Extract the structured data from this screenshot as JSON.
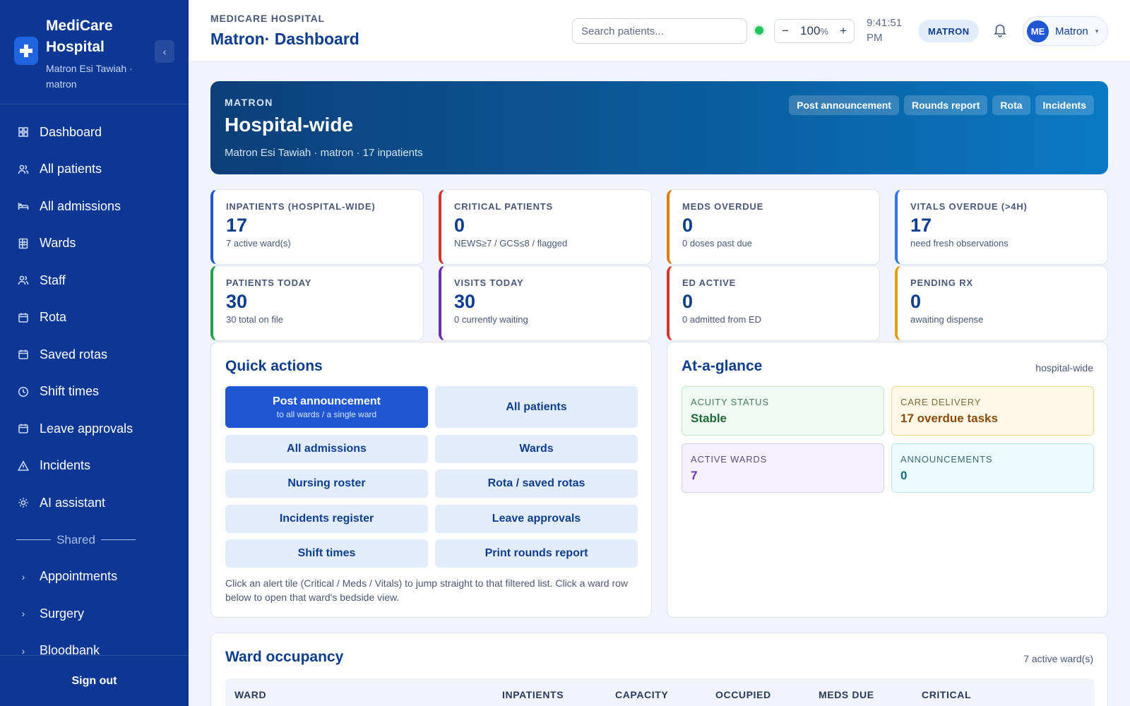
{
  "sidebar": {
    "brand_name": "MediCare Hospital",
    "brand_sub": "Matron Esi Tawiah · matron",
    "collapse_glyph": "‹",
    "items": [
      {
        "label": "Dashboard",
        "icon": "grid-icon"
      },
      {
        "label": "All patients",
        "icon": "users-icon"
      },
      {
        "label": "All admissions",
        "icon": "bed-icon"
      },
      {
        "label": "Wards",
        "icon": "building-icon"
      },
      {
        "label": "Staff",
        "icon": "users-icon"
      },
      {
        "label": "Rota",
        "icon": "calendar-icon"
      },
      {
        "label": "Saved rotas",
        "icon": "calendar-icon"
      },
      {
        "label": "Shift times",
        "icon": "clock-icon"
      },
      {
        "label": "Leave approvals",
        "icon": "calendar-icon"
      },
      {
        "label": "Incidents",
        "icon": "warning-icon"
      },
      {
        "label": "AI assistant",
        "icon": "sparkle-icon"
      }
    ],
    "shared_label": "Shared",
    "shared_items": [
      {
        "label": "Appointments"
      },
      {
        "label": "Surgery"
      },
      {
        "label": "Bloodbank"
      }
    ],
    "sign_out": "Sign out"
  },
  "topbar": {
    "crumb": "MEDICARE HOSPITAL",
    "title": "Matron· Dashboard",
    "search_placeholder": "Search patients...",
    "zoom_minus": "−",
    "zoom_value": "100",
    "zoom_unit": "%",
    "zoom_plus": "+",
    "clock": "9:41:51 PM",
    "role": "MATRON",
    "user_initials": "ME",
    "user_name": "Matron",
    "user_caret": "▾"
  },
  "hero": {
    "kicker": "MATRON",
    "title": "Hospital-wide",
    "sub": "Matron Esi Tawiah · matron · 17 inpatients",
    "actions": [
      "Post announcement",
      "Rounds report",
      "Rota",
      "Incidents"
    ]
  },
  "stats": [
    {
      "label": "INPATIENTS (HOSPITAL-WIDE)",
      "value": "17",
      "sub": "7 active ward(s)",
      "accent": "#1e56d4"
    },
    {
      "label": "CRITICAL PATIENTS",
      "value": "0",
      "sub": "NEWS≥7 / GCS≤8 / flagged",
      "accent": "#d6332b"
    },
    {
      "label": "MEDS OVERDUE",
      "value": "0",
      "sub": "0 doses past due",
      "accent": "#e07b0c"
    },
    {
      "label": "VITALS OVERDUE (>4H)",
      "value": "17",
      "sub": "need fresh observations",
      "accent": "#3b74e8"
    },
    {
      "label": "PATIENTS TODAY",
      "value": "30",
      "sub": "30 total on file",
      "accent": "#22a04a"
    },
    {
      "label": "VISITS TODAY",
      "value": "30",
      "sub": "0 currently waiting",
      "accent": "#6b2fb0"
    },
    {
      "label": "ED ACTIVE",
      "value": "0",
      "sub": "0 admitted from ED",
      "accent": "#d6332b"
    },
    {
      "label": "PENDING RX",
      "value": "0",
      "sub": "awaiting dispense",
      "accent": "#e0a00c"
    }
  ],
  "quick_actions": {
    "title": "Quick actions",
    "primary": {
      "label": "Post announcement",
      "sub": "to all wards / a single ward"
    },
    "buttons": [
      "All patients",
      "All admissions",
      "Wards",
      "Nursing roster",
      "Rota / saved rotas",
      "Incidents register",
      "Leave approvals",
      "Shift times",
      "Print rounds report"
    ],
    "hint": "Click an alert tile (Critical / Meds / Vitals) to jump straight to that filtered list. Click a ward row below to open that ward's bedside view."
  },
  "glance": {
    "title": "At-a-glance",
    "note": "hospital-wide",
    "tiles": [
      {
        "label": "ACUITY STATUS",
        "value": "Stable"
      },
      {
        "label": "CARE DELIVERY",
        "value": "17 overdue tasks"
      },
      {
        "label": "ACTIVE WARDS",
        "value": "7"
      },
      {
        "label": "ANNOUNCEMENTS",
        "value": "0"
      }
    ]
  },
  "wards": {
    "title": "Ward occupancy",
    "note": "7 active ward(s)",
    "columns": [
      "WARD",
      "INPATIENTS",
      "CAPACITY",
      "OCCUPIED",
      "MEDS DUE",
      "CRITICAL"
    ]
  }
}
